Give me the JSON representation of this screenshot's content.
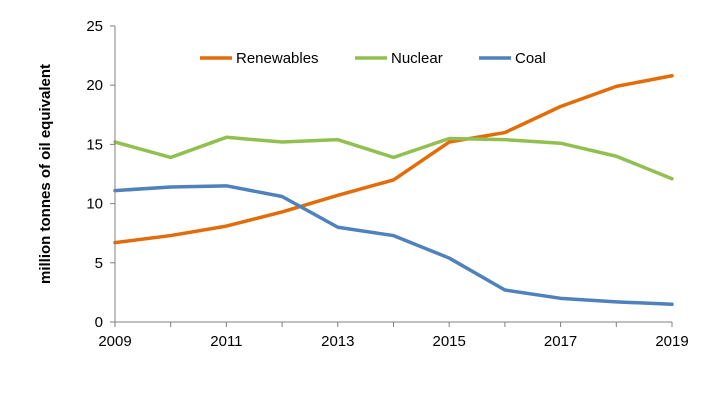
{
  "chart_data": {
    "type": "line",
    "title": "",
    "xlabel": "",
    "ylabel": "million tonnes of oil equivalent",
    "x": [
      2009,
      2010,
      2011,
      2012,
      2013,
      2014,
      2015,
      2016,
      2017,
      2018,
      2019
    ],
    "xticks": [
      "2009",
      "2011",
      "2013",
      "2015",
      "2017",
      "2019"
    ],
    "yticks": [
      "0",
      "5",
      "10",
      "15",
      "20",
      "25"
    ],
    "xlim": [
      2009,
      2019
    ],
    "ylim": [
      0,
      25
    ],
    "grid": false,
    "legend_position": "top",
    "series": [
      {
        "name": "Renewables",
        "color": "#E36C0A",
        "values": [
          6.7,
          7.3,
          8.1,
          9.3,
          10.7,
          12.0,
          15.2,
          16.0,
          18.2,
          19.9,
          20.8
        ]
      },
      {
        "name": "Nuclear",
        "color": "#92C050",
        "values": [
          15.2,
          13.9,
          15.6,
          15.2,
          15.4,
          13.9,
          15.5,
          15.4,
          15.1,
          14.0,
          12.1
        ]
      },
      {
        "name": "Coal",
        "color": "#4F81BD",
        "values": [
          11.1,
          11.4,
          11.5,
          10.6,
          8.0,
          7.3,
          5.4,
          2.7,
          2.0,
          1.7,
          1.5
        ]
      }
    ]
  }
}
